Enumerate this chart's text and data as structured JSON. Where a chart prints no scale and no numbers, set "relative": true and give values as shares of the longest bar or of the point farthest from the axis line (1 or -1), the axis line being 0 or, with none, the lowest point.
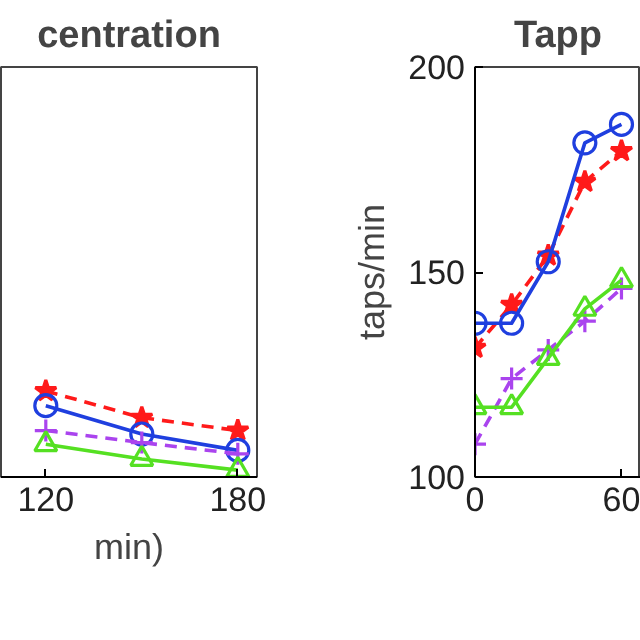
{
  "chart_data": [
    {
      "type": "line",
      "title": "centration",
      "xlabel": "min)",
      "relative": true,
      "tick_labels": "x",
      "x": [
        120,
        150,
        180
      ],
      "xlim": [
        106,
        186
      ],
      "xticks": [
        120,
        180
      ],
      "grid": false,
      "series": [
        {
          "color": "#ff1a1a",
          "marker": "star",
          "line_style": "dashed",
          "values": [
            1,
            0.69,
            0.54
          ]
        },
        {
          "color": "#1f3fdf",
          "marker": "circle",
          "line_style": "solid",
          "values": [
            0.83,
            0.5,
            0.31
          ]
        },
        {
          "color": "#aa44ee",
          "marker": "cross",
          "line_style": "dashed",
          "values": [
            0.54,
            0.4,
            0.27
          ]
        },
        {
          "color": "#55e022",
          "marker": "triangle",
          "line_style": "solid",
          "values": [
            0.38,
            0.21,
            0.08
          ]
        }
      ]
    },
    {
      "type": "line",
      "title": "Tapp",
      "ylabel": "taps/min",
      "x": [
        0,
        15,
        30,
        45,
        60
      ],
      "xlim": [
        0,
        68
      ],
      "xticks": [
        0,
        60
      ],
      "ylim": [
        100,
        200
      ],
      "yticks": [
        100,
        150,
        200
      ],
      "grid": false,
      "series": [
        {
          "color": "#ff1a1a",
          "marker": "star",
          "line_style": "dashed",
          "values": [
            131.5,
            142,
            154,
            172,
            179.5
          ]
        },
        {
          "color": "#1f3fdf",
          "marker": "circle",
          "line_style": "solid",
          "values": [
            137.5,
            137.5,
            152.5,
            181.5,
            186
          ]
        },
        {
          "color": "#aa44ee",
          "marker": "cross",
          "line_style": "dashed",
          "values": [
            108,
            124,
            131,
            138,
            146
          ]
        },
        {
          "color": "#55e022",
          "marker": "triangle",
          "line_style": "solid",
          "values": [
            117,
            117,
            129,
            141,
            148
          ]
        }
      ]
    }
  ]
}
